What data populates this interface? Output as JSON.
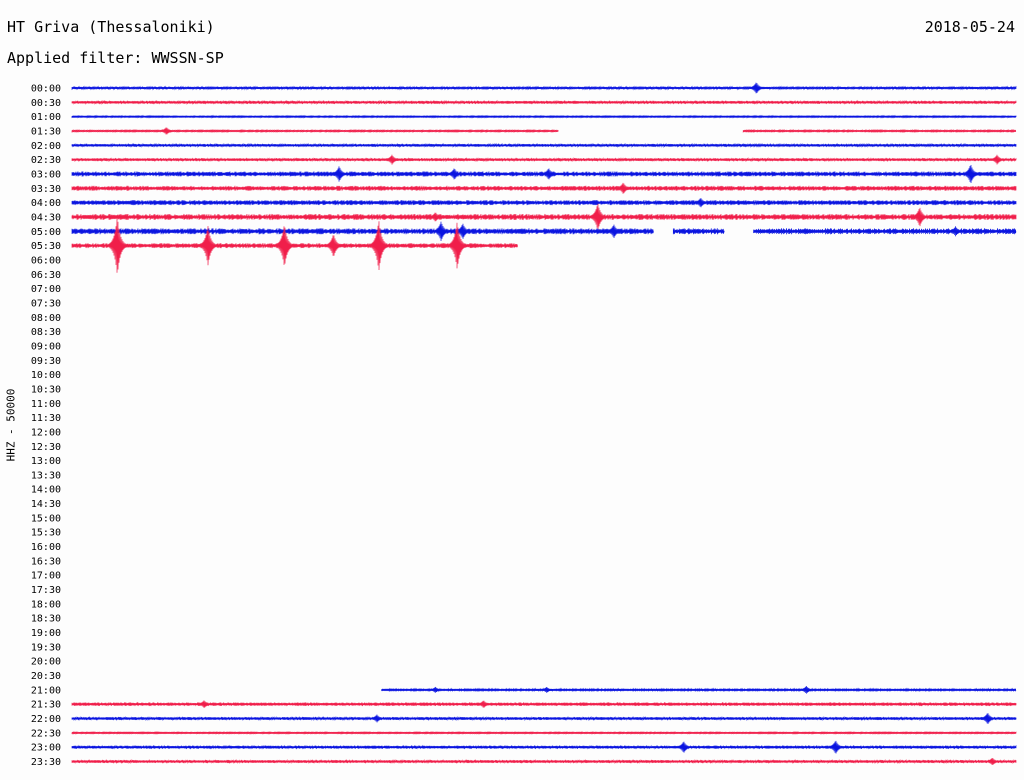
{
  "header": {
    "station": "HT Griva (Thessaloniki)",
    "date": "2018-05-24",
    "filter": "Applied filter: WWSSN-SP",
    "channel": "HHZ - 50000"
  },
  "colors": {
    "odd_trace": "#0a14e0",
    "even_trace": "#f01e4a",
    "label": "#000000"
  },
  "chart_data": {
    "type": "line",
    "subtype": "helicorder",
    "title": "HT Griva (Thessaloniki)",
    "ylabel": "HHZ - 50000",
    "rows": [
      {
        "time": "00:00",
        "color": "blue",
        "segments": [
          [
            0,
            100
          ]
        ],
        "amp": 1.2,
        "bursts": [
          [
            72.5,
            6
          ]
        ]
      },
      {
        "time": "00:30",
        "color": "red",
        "segments": [
          [
            0,
            100
          ]
        ],
        "amp": 1.5,
        "bursts": []
      },
      {
        "time": "01:00",
        "color": "blue",
        "segments": [
          [
            0,
            100
          ]
        ],
        "amp": 0.8,
        "bursts": []
      },
      {
        "time": "01:30",
        "color": "red",
        "segments": [
          [
            0,
            51.5
          ],
          [
            71.1,
            100
          ]
        ],
        "amp": 0.9,
        "bursts": [
          [
            10,
            4
          ]
        ]
      },
      {
        "time": "02:00",
        "color": "blue",
        "segments": [
          [
            0,
            100
          ]
        ],
        "amp": 1.4,
        "bursts": []
      },
      {
        "time": "02:30",
        "color": "red",
        "segments": [
          [
            0,
            100
          ]
        ],
        "amp": 1.5,
        "bursts": [
          [
            33.9,
            5
          ],
          [
            98,
            5
          ]
        ]
      },
      {
        "time": "03:00",
        "color": "blue",
        "segments": [
          [
            0,
            100
          ]
        ],
        "amp": 2.5,
        "bursts": [
          [
            28.3,
            8
          ],
          [
            40.5,
            6
          ],
          [
            50.5,
            6
          ],
          [
            95.2,
            10
          ]
        ]
      },
      {
        "time": "03:30",
        "color": "red",
        "segments": [
          [
            0,
            100
          ]
        ],
        "amp": 2.5,
        "bursts": [
          [
            58.4,
            6
          ]
        ]
      },
      {
        "time": "04:00",
        "color": "blue",
        "segments": [
          [
            0,
            100
          ]
        ],
        "amp": 2.5,
        "bursts": [
          [
            66.6,
            5
          ]
        ]
      },
      {
        "time": "04:30",
        "color": "red",
        "segments": [
          [
            0,
            100
          ]
        ],
        "amp": 3.0,
        "bursts": [
          [
            38.5,
            5
          ],
          [
            55.7,
            14
          ],
          [
            89.8,
            10
          ]
        ]
      },
      {
        "time": "05:00",
        "color": "blue",
        "segments": [
          [
            0,
            61.6
          ],
          [
            63.7,
            69.1
          ],
          [
            72.2,
            100
          ]
        ],
        "amp": 3.0,
        "bursts": [
          [
            39.1,
            10
          ],
          [
            41.4,
            8
          ],
          [
            57.4,
            7
          ],
          [
            93.6,
            5
          ]
        ]
      },
      {
        "time": "05:30",
        "color": "red",
        "segments": [
          [
            0,
            47.2
          ]
        ],
        "amp": 2.5,
        "bursts": [
          [
            4.8,
            30
          ],
          [
            14.4,
            20
          ],
          [
            22.5,
            22
          ],
          [
            27.7,
            12
          ],
          [
            32.5,
            26
          ],
          [
            40.8,
            24
          ]
        ]
      },
      {
        "time": "06:00",
        "color": "blue",
        "segments": [],
        "amp": 0,
        "bursts": []
      },
      {
        "time": "06:30",
        "color": "red",
        "segments": [],
        "amp": 0,
        "bursts": []
      },
      {
        "time": "07:00",
        "color": "blue",
        "segments": [],
        "amp": 0,
        "bursts": []
      },
      {
        "time": "07:30",
        "color": "red",
        "segments": [],
        "amp": 0,
        "bursts": []
      },
      {
        "time": "08:00",
        "color": "blue",
        "segments": [],
        "amp": 0,
        "bursts": []
      },
      {
        "time": "08:30",
        "color": "red",
        "segments": [],
        "amp": 0,
        "bursts": []
      },
      {
        "time": "09:00",
        "color": "blue",
        "segments": [],
        "amp": 0,
        "bursts": []
      },
      {
        "time": "09:30",
        "color": "red",
        "segments": [],
        "amp": 0,
        "bursts": []
      },
      {
        "time": "10:00",
        "color": "blue",
        "segments": [],
        "amp": 0,
        "bursts": []
      },
      {
        "time": "10:30",
        "color": "red",
        "segments": [],
        "amp": 0,
        "bursts": []
      },
      {
        "time": "11:00",
        "color": "blue",
        "segments": [],
        "amp": 0,
        "bursts": []
      },
      {
        "time": "11:30",
        "color": "red",
        "segments": [],
        "amp": 0,
        "bursts": []
      },
      {
        "time": "12:00",
        "color": "blue",
        "segments": [],
        "amp": 0,
        "bursts": []
      },
      {
        "time": "12:30",
        "color": "red",
        "segments": [],
        "amp": 0,
        "bursts": []
      },
      {
        "time": "13:00",
        "color": "blue",
        "segments": [],
        "amp": 0,
        "bursts": []
      },
      {
        "time": "13:30",
        "color": "red",
        "segments": [],
        "amp": 0,
        "bursts": []
      },
      {
        "time": "14:00",
        "color": "blue",
        "segments": [],
        "amp": 0,
        "bursts": []
      },
      {
        "time": "14:30",
        "color": "red",
        "segments": [],
        "amp": 0,
        "bursts": []
      },
      {
        "time": "15:00",
        "color": "blue",
        "segments": [],
        "amp": 0,
        "bursts": []
      },
      {
        "time": "15:30",
        "color": "red",
        "segments": [],
        "amp": 0,
        "bursts": []
      },
      {
        "time": "16:00",
        "color": "blue",
        "segments": [],
        "amp": 0,
        "bursts": []
      },
      {
        "time": "16:30",
        "color": "red",
        "segments": [],
        "amp": 0,
        "bursts": []
      },
      {
        "time": "17:00",
        "color": "blue",
        "segments": [],
        "amp": 0,
        "bursts": []
      },
      {
        "time": "17:30",
        "color": "red",
        "segments": [],
        "amp": 0,
        "bursts": []
      },
      {
        "time": "18:00",
        "color": "blue",
        "segments": [],
        "amp": 0,
        "bursts": []
      },
      {
        "time": "18:30",
        "color": "red",
        "segments": [],
        "amp": 0,
        "bursts": []
      },
      {
        "time": "19:00",
        "color": "blue",
        "segments": [],
        "amp": 0,
        "bursts": []
      },
      {
        "time": "19:30",
        "color": "red",
        "segments": [],
        "amp": 0,
        "bursts": []
      },
      {
        "time": "20:00",
        "color": "blue",
        "segments": [],
        "amp": 0,
        "bursts": []
      },
      {
        "time": "20:30",
        "color": "red",
        "segments": [],
        "amp": 0,
        "bursts": []
      },
      {
        "time": "21:00",
        "color": "blue",
        "segments": [
          [
            32.8,
            100
          ]
        ],
        "amp": 1.0,
        "bursts": [
          [
            38.5,
            3
          ],
          [
            50.3,
            3
          ],
          [
            77.8,
            4
          ]
        ]
      },
      {
        "time": "21:30",
        "color": "red",
        "segments": [
          [
            0,
            100
          ]
        ],
        "amp": 1.8,
        "bursts": [
          [
            14,
            4
          ],
          [
            43.6,
            4
          ]
        ]
      },
      {
        "time": "22:00",
        "color": "blue",
        "segments": [
          [
            0,
            100
          ]
        ],
        "amp": 1.5,
        "bursts": [
          [
            32.3,
            4
          ],
          [
            97,
            6
          ]
        ]
      },
      {
        "time": "22:30",
        "color": "red",
        "segments": [
          [
            0,
            100
          ]
        ],
        "amp": 0.8,
        "bursts": []
      },
      {
        "time": "23:00",
        "color": "blue",
        "segments": [
          [
            0,
            100
          ]
        ],
        "amp": 1.6,
        "bursts": [
          [
            64.8,
            6
          ],
          [
            80.9,
            7
          ]
        ]
      },
      {
        "time": "23:30",
        "color": "red",
        "segments": [
          [
            0,
            100
          ]
        ],
        "amp": 1.5,
        "bursts": [
          [
            97.5,
            4
          ]
        ]
      }
    ]
  }
}
